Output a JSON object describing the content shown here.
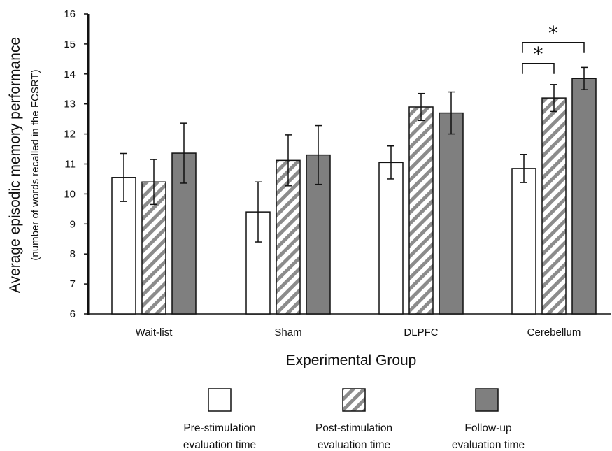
{
  "chart_data": {
    "type": "bar",
    "ylabel": "Average episodic memory performance",
    "ylabel_sub": "(number of words recalled in the FCSRT)",
    "xlabel": "Experimental Group",
    "ylim": [
      6,
      16
    ],
    "yticks": [
      "6",
      "7",
      "8",
      "9",
      "10",
      "11",
      "12",
      "13",
      "14",
      "15",
      "16"
    ],
    "categories": [
      "Wait-list",
      "Sham",
      "DLPFC",
      "Cerebellum"
    ],
    "series": [
      {
        "name_lines": [
          "Pre-stimulation",
          "evaluation time"
        ],
        "style": "white",
        "values": [
          10.55,
          9.4,
          11.05,
          10.85
        ],
        "errors": [
          0.8,
          1.0,
          0.55,
          0.47
        ]
      },
      {
        "name_lines": [
          "Post-stimulation",
          "evaluation time"
        ],
        "style": "hatched",
        "values": [
          10.4,
          11.12,
          12.9,
          13.2
        ],
        "errors": [
          0.75,
          0.85,
          0.45,
          0.45
        ]
      },
      {
        "name_lines": [
          "Follow-up",
          "evaluation time"
        ],
        "style": "gray",
        "values": [
          11.36,
          11.3,
          12.7,
          13.85
        ],
        "errors": [
          1.0,
          0.98,
          0.7,
          0.37
        ]
      }
    ],
    "significance": [
      {
        "category": "Cerebellum",
        "from_series": 0,
        "to_series": 1,
        "label": "*",
        "y": 14.35
      },
      {
        "category": "Cerebellum",
        "from_series": 0,
        "to_series": 2,
        "label": "*",
        "y": 15.05
      }
    ],
    "colors": {
      "white": "#ffffff",
      "gray": "#7f7f7f",
      "hatch_stripe": "#8c8c8c",
      "outline": "#111111"
    },
    "legend_position": "bottom",
    "grid": false
  }
}
